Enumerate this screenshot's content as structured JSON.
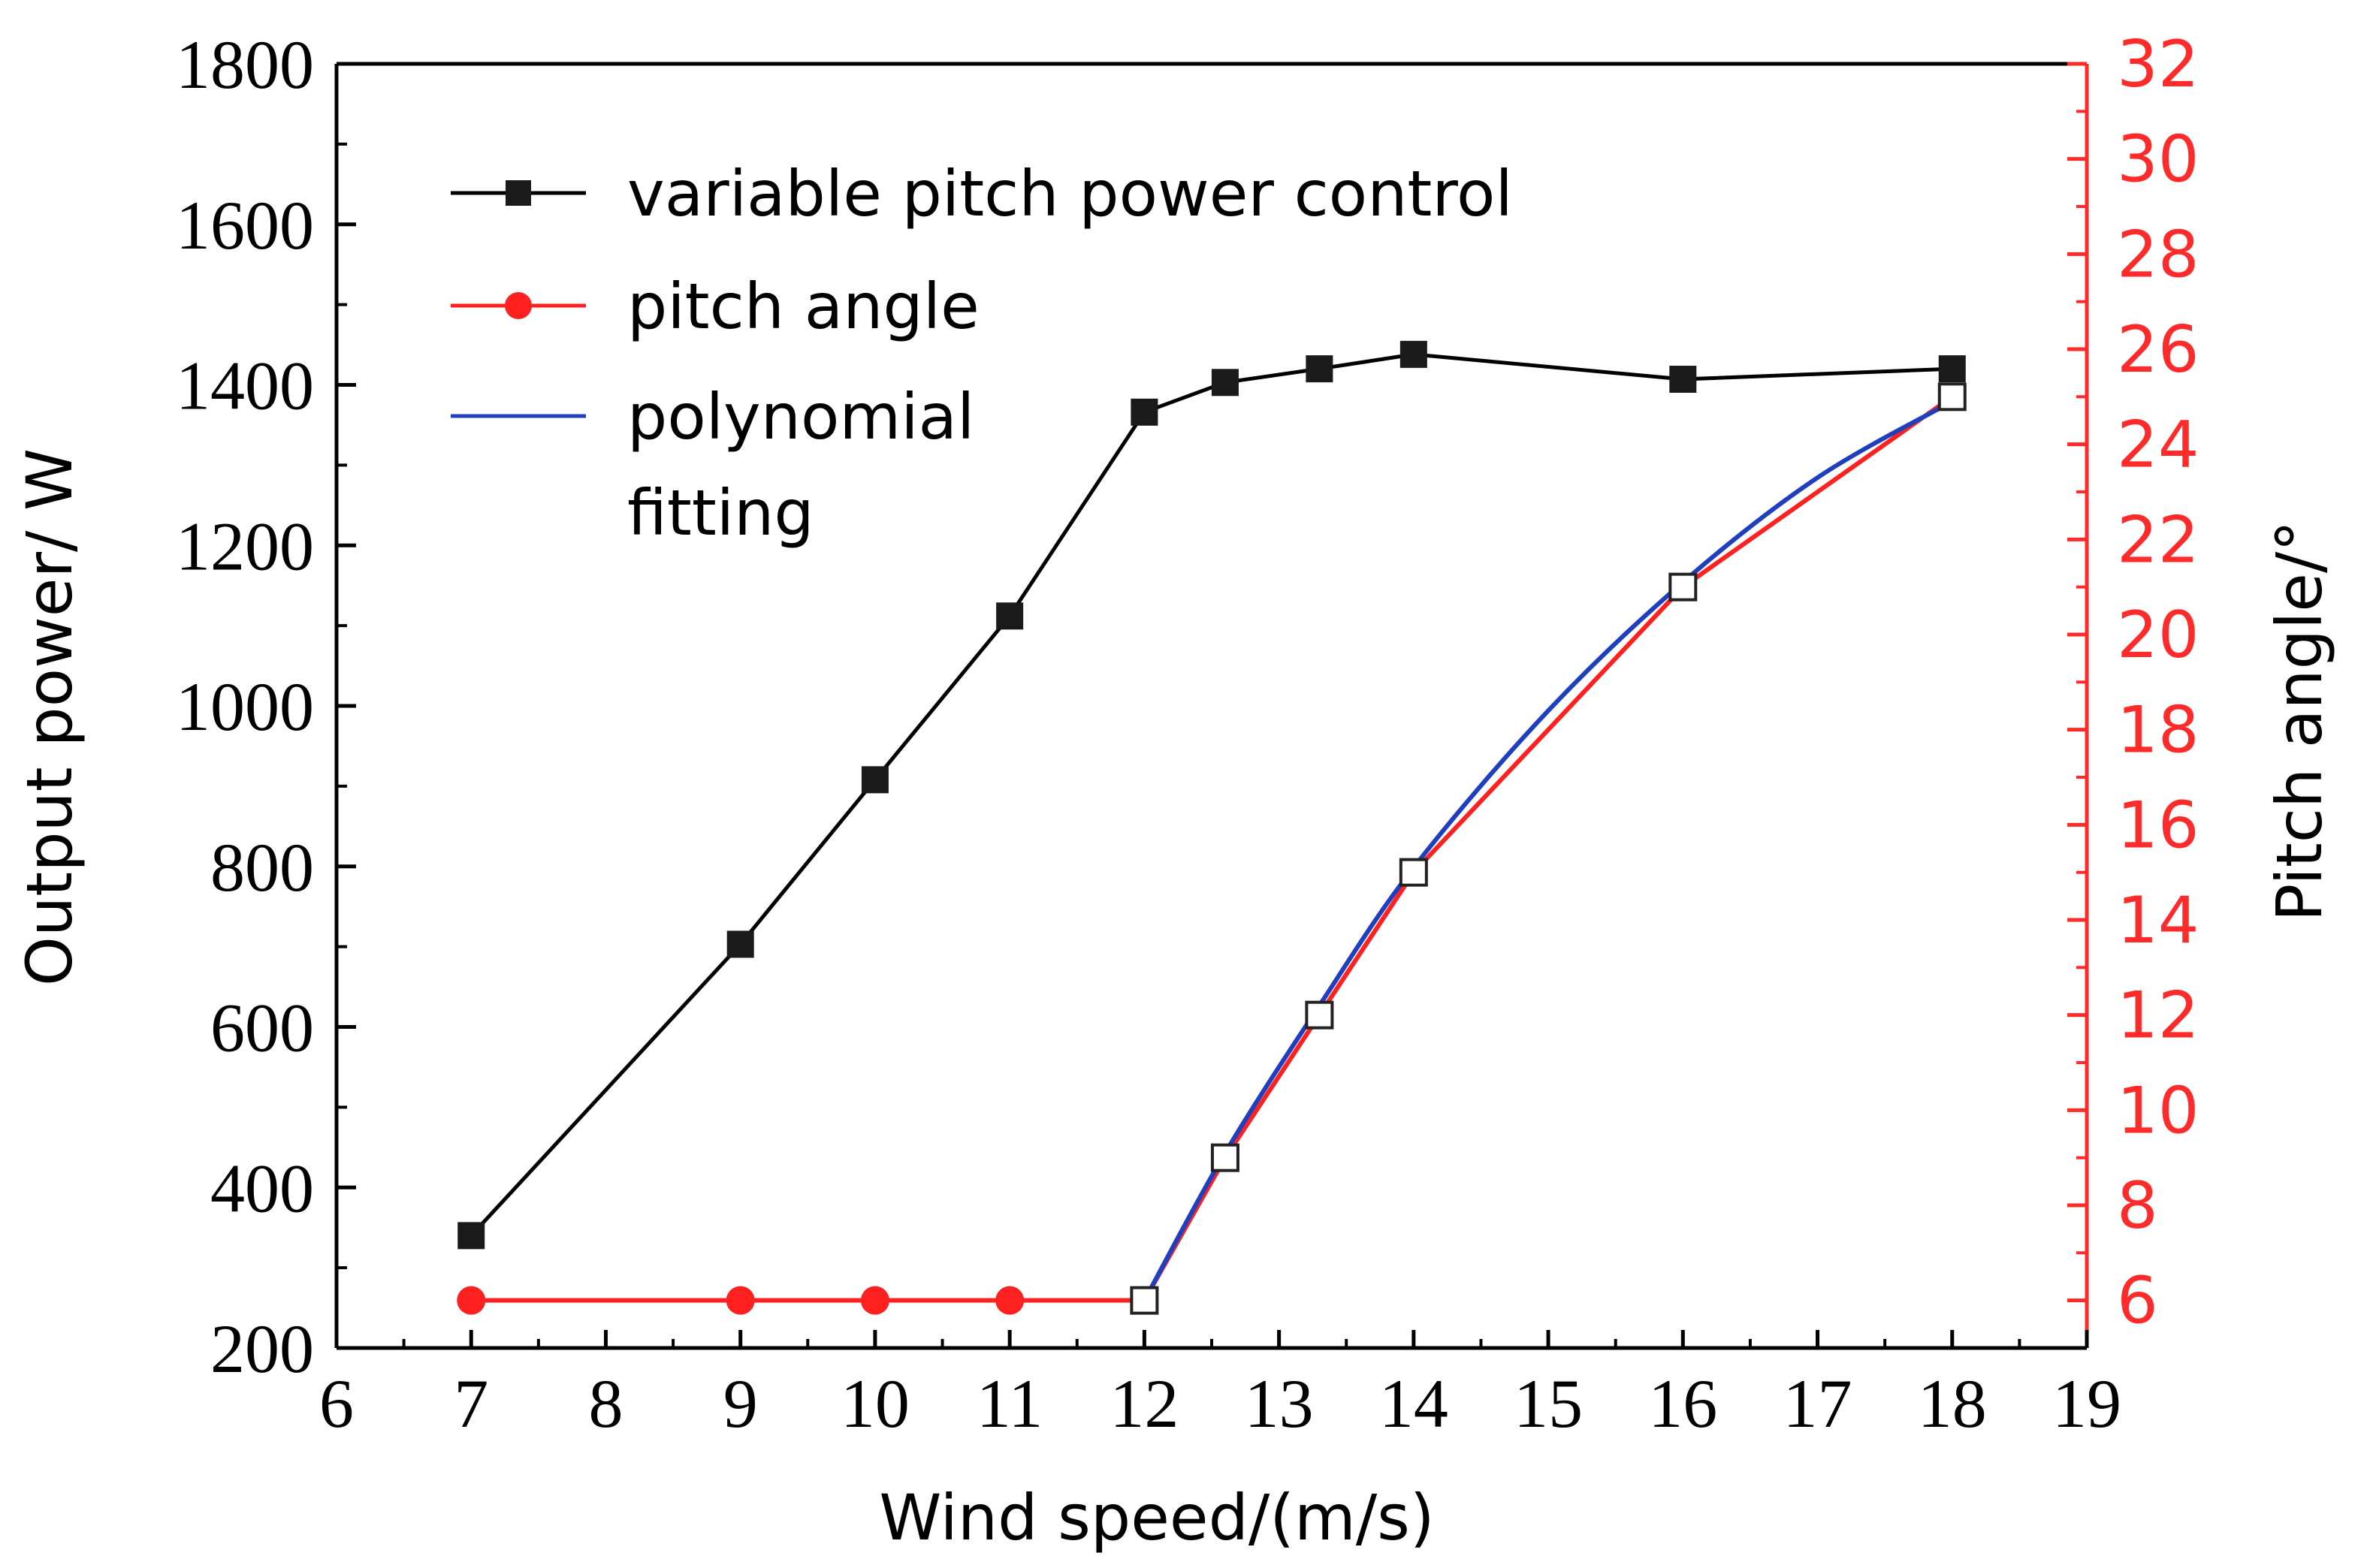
{
  "chart_data": {
    "type": "line",
    "title": "",
    "xlabel": "Wind speed/(m/s)",
    "ylabel": "Output power/ W",
    "ylabel_right": "Pitch angle/°",
    "x_ticks": [
      "6",
      "7",
      "8",
      "9",
      "10",
      "11",
      "12",
      "13",
      "14",
      "15",
      "16",
      "17",
      "18",
      "19"
    ],
    "y_ticks": [
      "200",
      "400",
      "600",
      "800",
      "1000",
      "1200",
      "1400",
      "1600",
      "1800"
    ],
    "y2_ticks": [
      "6",
      "8",
      "10",
      "12",
      "14",
      "16",
      "18",
      "20",
      "22",
      "24",
      "26",
      "28",
      "30",
      "32"
    ],
    "xlim": [
      6,
      19
    ],
    "ylim": [
      200,
      1800
    ],
    "y2lim": [
      5,
      32
    ],
    "grid": false,
    "legend_position": "top-left",
    "colors": {
      "power": "#000000",
      "pitch": "#ff2020",
      "fit": "#1f3fbf",
      "right_axis": "#ff2a2a"
    },
    "series": [
      {
        "name": "variable pitch power control",
        "axis": "left",
        "marker": "square",
        "x": [
          7,
          9,
          10,
          11,
          12,
          12.6,
          13.3,
          14,
          16,
          18
        ],
        "values": [
          340,
          703,
          908,
          1112,
          1366,
          1403,
          1420,
          1438,
          1407,
          1420
        ]
      },
      {
        "name": "pitch angle",
        "axis": "right",
        "marker": "circle",
        "x": [
          7,
          9,
          10,
          11,
          12,
          12.6,
          13.3,
          14,
          16,
          18
        ],
        "values": [
          6,
          6,
          6,
          6,
          6,
          9,
          12,
          15,
          21,
          25
        ]
      },
      {
        "name": "polynomial fitting",
        "axis": "right",
        "marker": "none",
        "x": [
          12,
          12.6,
          13.3,
          14,
          15,
          16,
          17,
          18
        ],
        "values": [
          6,
          9.1,
          12.2,
          15.1,
          18.4,
          21.1,
          23.3,
          24.9
        ]
      }
    ],
    "legend": [
      {
        "label": "variable pitch power control"
      },
      {
        "label": "pitch angle"
      },
      {
        "label": "polynomial",
        "label_line2": "fitting"
      }
    ]
  }
}
